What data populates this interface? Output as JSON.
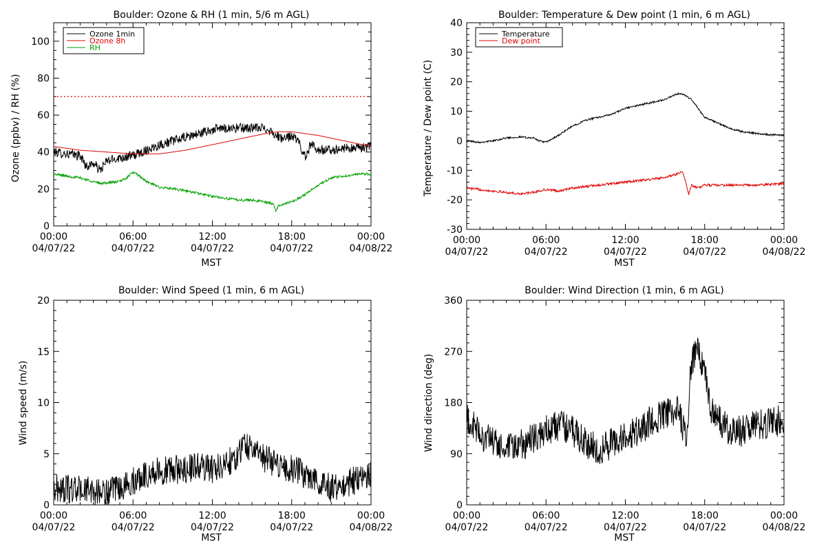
{
  "chart_data": [
    {
      "type": "line",
      "title": "Boulder: Ozone & RH (1 min, 5/6 m AGL)",
      "xlabel": "MST",
      "ylabel": "Ozone (ppbv) / RH (%)",
      "xlim": [
        0,
        24
      ],
      "ylim": [
        0,
        110
      ],
      "x_ticks": [
        0,
        6,
        12,
        18,
        24
      ],
      "x_tick_labels": [
        [
          "00:00",
          "04/07/22"
        ],
        [
          "06:00",
          "04/07/22"
        ],
        [
          "12:00",
          "04/07/22"
        ],
        [
          "18:00",
          "04/07/22"
        ],
        [
          "00:00",
          "04/08/22"
        ]
      ],
      "y_ticks": [
        0,
        20,
        40,
        60,
        80,
        100
      ],
      "y_minor_step": 5,
      "grid": false,
      "legend_position": "top-left",
      "hline": {
        "y": 70,
        "color": "#e00000",
        "style": "dotted"
      },
      "series": [
        {
          "name": "Ozone 1min",
          "color": "#000000",
          "noise": 2.6,
          "x": [
            0,
            1,
            2,
            2.5,
            3,
            3.5,
            4,
            5,
            6,
            7,
            8,
            9,
            10,
            11,
            12,
            13,
            14,
            15,
            16,
            16.5,
            17,
            17.5,
            18,
            18.5,
            19,
            19.5,
            20,
            21,
            22,
            23,
            24
          ],
          "y": [
            40,
            39,
            38,
            32,
            34,
            30,
            35,
            37,
            38,
            41,
            44,
            46,
            48,
            50,
            52,
            53,
            53,
            53,
            53,
            51,
            48,
            47,
            49,
            46,
            37,
            45,
            41,
            41,
            42,
            42,
            43
          ]
        },
        {
          "name": "Ozone 8h",
          "color": "#e00000",
          "noise": 0,
          "x": [
            0,
            2,
            4,
            6,
            8,
            10,
            12,
            14,
            16,
            17,
            18,
            19,
            20,
            22,
            24
          ],
          "y": [
            43,
            41,
            40,
            39,
            39,
            41,
            44,
            47,
            50,
            51,
            51,
            50,
            49,
            46,
            43
          ]
        },
        {
          "name": "RH",
          "color": "#00a000",
          "noise": 0.7,
          "x": [
            0,
            2,
            3.5,
            5,
            5.5,
            6,
            6.5,
            7,
            8,
            10,
            12,
            13,
            14,
            15,
            16,
            16.6,
            16.8,
            17,
            18,
            19,
            20,
            21,
            22,
            23,
            24
          ],
          "y": [
            28,
            26,
            23,
            24,
            26,
            29,
            27,
            24,
            21,
            19,
            16,
            15,
            14,
            14,
            13,
            12,
            8,
            11,
            13,
            17,
            22,
            26,
            27,
            28,
            28
          ]
        }
      ]
    },
    {
      "type": "line",
      "title": "Boulder: Temperature & Dew point (1 min, 6 m AGL)",
      "xlabel": "MST",
      "ylabel": "Temperature / Dew point (C)",
      "xlim": [
        0,
        24
      ],
      "ylim": [
        -30,
        40
      ],
      "x_ticks": [
        0,
        6,
        12,
        18,
        24
      ],
      "x_tick_labels": [
        [
          "00:00",
          "04/07/22"
        ],
        [
          "06:00",
          "04/07/22"
        ],
        [
          "12:00",
          "04/07/22"
        ],
        [
          "18:00",
          "04/07/22"
        ],
        [
          "00:00",
          "04/08/22"
        ]
      ],
      "y_ticks": [
        -30,
        -20,
        -10,
        0,
        10,
        20,
        30,
        40
      ],
      "y_minor_step": 2,
      "grid": false,
      "legend_position": "top-left",
      "series": [
        {
          "name": "Temperature",
          "color": "#000000",
          "noise": 0.3,
          "x": [
            0,
            1,
            2,
            3,
            4,
            5,
            5.5,
            6,
            7,
            8,
            9,
            10,
            11,
            12,
            13,
            14,
            15,
            15.5,
            16,
            16.5,
            17,
            17.5,
            18,
            19,
            20,
            21,
            22,
            23,
            24
          ],
          "y": [
            0,
            -0.5,
            0,
            1,
            1.3,
            1,
            0,
            -0.5,
            2,
            5,
            7,
            8,
            9,
            11,
            12,
            13,
            14,
            15,
            16,
            15.5,
            14,
            11,
            8,
            6,
            4,
            3,
            2.5,
            2,
            2
          ]
        },
        {
          "name": "Dew point",
          "color": "#e00000",
          "noise": 0.4,
          "x": [
            0,
            2,
            3,
            4,
            5,
            6,
            7,
            8,
            10,
            12,
            14,
            15,
            16,
            16.3,
            16.5,
            16.8,
            17,
            17.5,
            18,
            19,
            20,
            22,
            24
          ],
          "y": [
            -16,
            -17,
            -17.5,
            -18,
            -17.5,
            -16.5,
            -17,
            -16,
            -15,
            -14,
            -13,
            -12.5,
            -11,
            -10.5,
            -13,
            -18,
            -15,
            -16,
            -15,
            -15,
            -15,
            -15,
            -14.5
          ]
        }
      ]
    },
    {
      "type": "line",
      "title": "Boulder: Wind Speed (1 min, 6 m AGL)",
      "xlabel": "MST",
      "ylabel": "Wind speed (m/s)",
      "xlim": [
        0,
        24
      ],
      "ylim": [
        0,
        20
      ],
      "x_ticks": [
        0,
        6,
        12,
        18,
        24
      ],
      "x_tick_labels": [
        [
          "00:00",
          "04/07/22"
        ],
        [
          "06:00",
          "04/07/22"
        ],
        [
          "12:00",
          "04/07/22"
        ],
        [
          "18:00",
          "04/07/22"
        ],
        [
          "00:00",
          "04/08/22"
        ]
      ],
      "y_ticks": [
        0,
        5,
        10,
        15,
        20
      ],
      "y_minor_step": 1,
      "grid": false,
      "legend_position": "none",
      "series": [
        {
          "name": "",
          "color": "#000000",
          "noise": 1.4,
          "x": [
            0,
            2,
            4,
            5,
            6,
            7,
            8,
            10,
            11,
            12,
            13,
            14,
            14.5,
            15,
            16,
            17,
            18,
            19,
            20,
            21,
            22,
            23,
            24
          ],
          "y": [
            1.6,
            1.5,
            1.2,
            1.5,
            2.3,
            3,
            3.3,
            3.5,
            3.8,
            3.5,
            4,
            5,
            6,
            5.5,
            4.5,
            4,
            3.5,
            3,
            2.5,
            1.6,
            2,
            2.5,
            3
          ]
        }
      ]
    },
    {
      "type": "line",
      "title": "Boulder: Wind Direction (1 min, 6 m AGL)",
      "xlabel": "MST",
      "ylabel": "Wind direction (deg)",
      "xlim": [
        0,
        24
      ],
      "ylim": [
        0,
        360
      ],
      "x_ticks": [
        0,
        6,
        12,
        18,
        24
      ],
      "x_tick_labels": [
        [
          "00:00",
          "04/07/22"
        ],
        [
          "06:00",
          "04/07/22"
        ],
        [
          "12:00",
          "04/07/22"
        ],
        [
          "18:00",
          "04/07/22"
        ],
        [
          "00:00",
          "04/08/22"
        ]
      ],
      "y_ticks": [
        0,
        90,
        180,
        270,
        360
      ],
      "y_minor_step": 15,
      "grid": false,
      "legend_position": "none",
      "series": [
        {
          "name": "",
          "color": "#000000",
          "noise": 28,
          "x": [
            0,
            1,
            2,
            3,
            4,
            5,
            6,
            7,
            8,
            9,
            10,
            11,
            12,
            13,
            14,
            15,
            16,
            16.3,
            16.6,
            17,
            17.5,
            18,
            18.5,
            19,
            20,
            21,
            22,
            23,
            24
          ],
          "y": [
            150,
            125,
            110,
            95,
            105,
            115,
            130,
            140,
            130,
            110,
            95,
            110,
            120,
            130,
            150,
            160,
            165,
            140,
            120,
            250,
            270,
            240,
            170,
            150,
            130,
            130,
            140,
            145,
            150
          ]
        }
      ]
    }
  ]
}
